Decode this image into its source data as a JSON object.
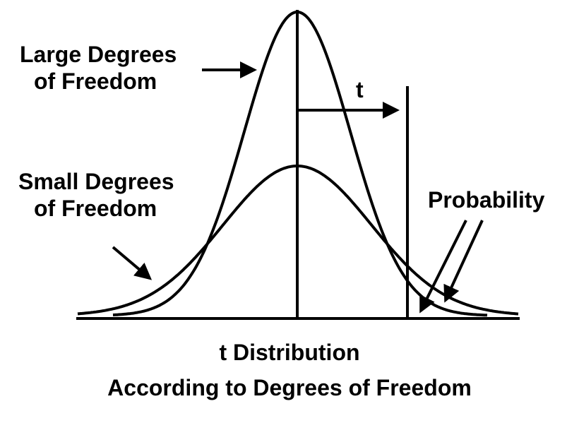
{
  "labels": {
    "large_df": [
      "Large Degrees",
      "of Freedom"
    ],
    "small_df": [
      "Small Degrees",
      "of Freedom"
    ],
    "t": "t",
    "probability": "Probability"
  },
  "caption": {
    "line1": "t Distribution",
    "line2": "According to Degrees of Freedom"
  },
  "colors": {
    "ink": "#000000",
    "background": "#ffffff"
  }
}
